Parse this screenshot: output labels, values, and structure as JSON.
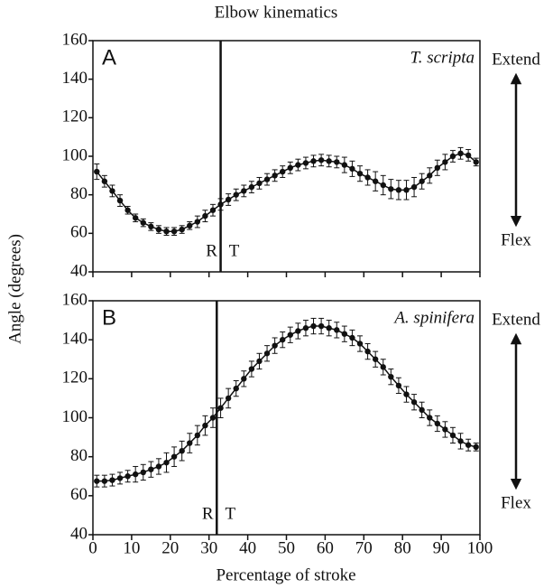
{
  "title": "Elbow kinematics",
  "xlabel": "Percentage of stroke",
  "ylabel": "Angle (degrees)",
  "chart_data": [
    {
      "type": "line",
      "panel_label": "A",
      "species": "T. scripta",
      "x": [
        1,
        3,
        5,
        7,
        9,
        11,
        13,
        15,
        17,
        19,
        21,
        23,
        25,
        27,
        29,
        31,
        33,
        35,
        37,
        39,
        41,
        43,
        45,
        47,
        49,
        51,
        53,
        55,
        57,
        59,
        61,
        63,
        65,
        67,
        69,
        71,
        73,
        75,
        77,
        79,
        81,
        83,
        85,
        87,
        89,
        91,
        93,
        95,
        97,
        99
      ],
      "series": [
        {
          "color": "#111111",
          "values": [
            92,
            87,
            82,
            77,
            72,
            68,
            65.5,
            63.5,
            62,
            61,
            61,
            62,
            64,
            66,
            69,
            72,
            75,
            77.5,
            80,
            82,
            84,
            86,
            88,
            90,
            92,
            94,
            95.5,
            96.5,
            97.5,
            98,
            97.5,
            97,
            95.5,
            93.5,
            91,
            89,
            87,
            85,
            83,
            82.5,
            82.5,
            84,
            87,
            90,
            94,
            97,
            100,
            101.5,
            100.5,
            97
          ],
          "errors": [
            4,
            3,
            3,
            3,
            2,
            2,
            2,
            2,
            2,
            2,
            2,
            2,
            2,
            3,
            3,
            3,
            3,
            3,
            3,
            3,
            3,
            3,
            3,
            3,
            3,
            3,
            3,
            3,
            3,
            3,
            3,
            3,
            4,
            4,
            4,
            4,
            5,
            5,
            5,
            5,
            5,
            5,
            4,
            4,
            4,
            4,
            3,
            3,
            3,
            2
          ]
        }
      ],
      "xlim": [
        0,
        100
      ],
      "xticks": [
        0,
        10,
        20,
        30,
        40,
        50,
        60,
        70,
        80,
        90,
        100
      ],
      "ylim": [
        40,
        160
      ],
      "yticks": [
        40,
        60,
        80,
        100,
        120,
        140,
        160
      ],
      "divider_x": 33,
      "left_phase": "R",
      "right_phase": "T",
      "up_label": "Extend",
      "down_label": "Flex"
    },
    {
      "type": "line",
      "panel_label": "B",
      "species": "A. spinifera",
      "x": [
        1,
        3,
        5,
        7,
        9,
        11,
        13,
        15,
        17,
        19,
        21,
        23,
        25,
        27,
        29,
        31,
        33,
        35,
        37,
        39,
        41,
        43,
        45,
        47,
        49,
        51,
        53,
        55,
        57,
        59,
        61,
        63,
        65,
        67,
        69,
        71,
        73,
        75,
        77,
        79,
        81,
        83,
        85,
        87,
        89,
        91,
        93,
        95,
        97,
        99
      ],
      "series": [
        {
          "color": "#111111",
          "values": [
            67.5,
            67.5,
            68,
            69,
            70,
            71,
            72,
            73.5,
            75,
            77,
            80,
            83,
            87,
            91,
            96,
            100,
            105,
            110,
            115,
            120,
            125,
            129,
            133,
            137,
            140,
            142.5,
            144.5,
            146,
            147,
            147,
            146,
            145,
            143,
            141,
            138,
            134,
            130,
            126,
            121,
            116.5,
            112,
            108,
            104,
            100,
            97,
            94,
            91,
            88,
            86,
            85
          ],
          "errors": [
            3,
            3,
            3,
            3,
            3,
            4,
            4,
            4,
            4,
            5,
            5,
            5,
            5,
            5,
            5,
            5,
            5,
            5,
            4,
            4,
            4,
            4,
            4,
            4,
            4,
            4,
            4,
            4,
            4,
            4,
            4,
            4,
            4,
            4,
            4,
            4,
            4,
            4,
            4,
            4,
            4,
            4,
            4,
            4,
            4,
            4,
            4,
            4,
            3,
            2
          ]
        }
      ],
      "xlim": [
        0,
        100
      ],
      "xticks": [
        0,
        10,
        20,
        30,
        40,
        50,
        60,
        70,
        80,
        90,
        100
      ],
      "ylim": [
        40,
        160
      ],
      "yticks": [
        40,
        60,
        80,
        100,
        120,
        140,
        160
      ],
      "divider_x": 32,
      "left_phase": "R",
      "right_phase": "T",
      "up_label": "Extend",
      "down_label": "Flex"
    }
  ]
}
